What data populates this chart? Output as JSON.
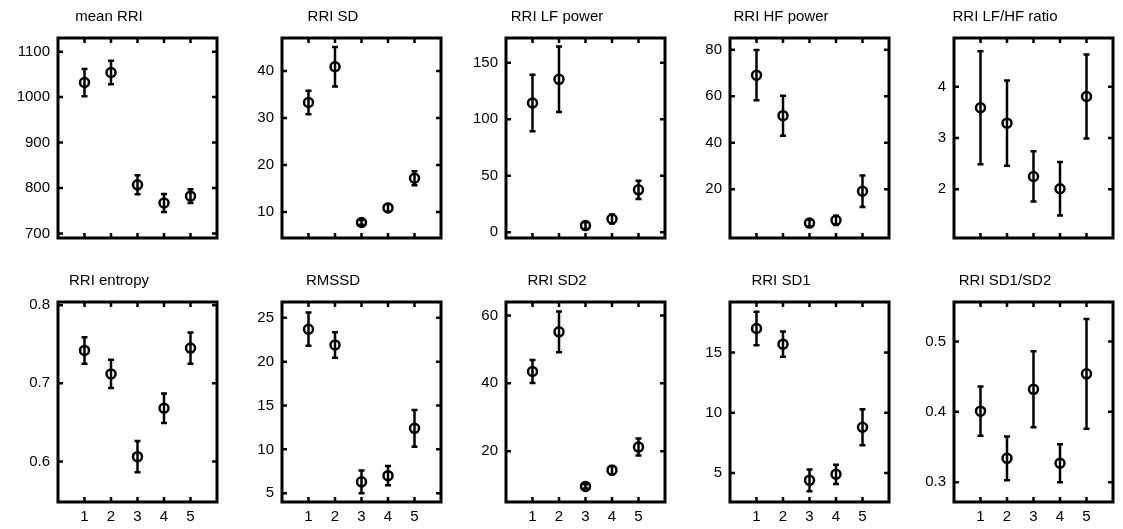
{
  "chart_data": [
    {
      "type": "scatter",
      "title": "mean RRI",
      "x": [
        1,
        2,
        3,
        4,
        5
      ],
      "xlim": [
        0,
        6
      ],
      "xticks": [
        1,
        2,
        3,
        4,
        5
      ],
      "ylim": [
        690,
        1130
      ],
      "yticks": [
        700,
        800,
        900,
        1000,
        1100
      ],
      "marker": "circle",
      "tick_labels": "y",
      "series": [
        {
          "color": "#000000",
          "values": [
            1032,
            1054,
            807,
            767,
            782
          ],
          "errors": [
            30,
            26,
            21,
            20,
            15
          ]
        }
      ]
    },
    {
      "type": "scatter",
      "title": "RRI SD",
      "x": [
        1,
        2,
        3,
        4,
        5
      ],
      "xlim": [
        0,
        6
      ],
      "xticks": [
        1,
        2,
        3,
        4,
        5
      ],
      "ylim": [
        4.5,
        47
      ],
      "yticks": [
        10,
        20,
        30,
        40
      ],
      "marker": "circle",
      "tick_labels": "y",
      "series": [
        {
          "color": "#000000",
          "values": [
            33.3,
            40.9,
            7.8,
            10.9,
            17.2
          ],
          "errors": [
            2.5,
            4.2,
            0.5,
            0.8,
            1.5
          ]
        }
      ]
    },
    {
      "type": "scatter",
      "title": "RRI LF power",
      "x": [
        1,
        2,
        3,
        4,
        5
      ],
      "xlim": [
        0,
        6
      ],
      "xticks": [
        1,
        2,
        3,
        4,
        5
      ],
      "ylim": [
        -5,
        172
      ],
      "yticks": [
        0,
        50,
        100,
        150
      ],
      "marker": "circle",
      "tick_labels": "y",
      "series": [
        {
          "color": "#000000",
          "values": [
            114.5,
            135.4,
            6,
            11.8,
            37.6
          ],
          "errors": [
            25,
            29,
            3,
            4,
            8
          ]
        }
      ]
    },
    {
      "type": "scatter",
      "title": "RRI HF power",
      "x": [
        1,
        2,
        3,
        4,
        5
      ],
      "xlim": [
        0,
        6
      ],
      "xticks": [
        1,
        2,
        3,
        4,
        5
      ],
      "ylim": [
        -1,
        85
      ],
      "yticks": [
        20,
        40,
        60,
        80
      ],
      "marker": "circle",
      "tick_labels": "y",
      "series": [
        {
          "color": "#000000",
          "values": [
            69,
            51.6,
            5.4,
            6.6,
            19.1
          ],
          "errors": [
            10.8,
            8.6,
            1.5,
            2,
            6.8
          ]
        }
      ]
    },
    {
      "type": "scatter",
      "title": "RRI LF/HF ratio",
      "x": [
        1,
        2,
        3,
        4,
        5
      ],
      "xlim": [
        0,
        6
      ],
      "xticks": [
        1,
        2,
        3,
        4,
        5
      ],
      "ylim": [
        1.05,
        4.95
      ],
      "yticks": [
        2,
        3,
        4
      ],
      "marker": "circle",
      "tick_labels": "y",
      "series": [
        {
          "color": "#000000",
          "values": [
            3.59,
            3.29,
            2.25,
            2.01,
            3.81
          ],
          "errors": [
            1.1,
            0.83,
            0.49,
            0.52,
            0.82
          ]
        }
      ]
    },
    {
      "type": "scatter",
      "title": "RRI entropy",
      "x": [
        1,
        2,
        3,
        4,
        5
      ],
      "xlim": [
        0,
        6
      ],
      "xticks": [
        1,
        2,
        3,
        4,
        5
      ],
      "ylim": [
        0.548,
        0.804
      ],
      "yticks": [
        0.6,
        0.7,
        0.8
      ],
      "marker": "circle",
      "series": [
        {
          "color": "#000000",
          "values": [
            0.742,
            0.712,
            0.606,
            0.668,
            0.745
          ],
          "errors": [
            0.017,
            0.018,
            0.02,
            0.019,
            0.02
          ]
        }
      ]
    },
    {
      "type": "scatter",
      "title": "RMSSD",
      "x": [
        1,
        2,
        3,
        4,
        5
      ],
      "xlim": [
        0,
        6
      ],
      "xticks": [
        1,
        2,
        3,
        4,
        5
      ],
      "ylim": [
        4,
        26.8
      ],
      "yticks": [
        5,
        10,
        15,
        20,
        25
      ],
      "marker": "circle",
      "series": [
        {
          "color": "#000000",
          "values": [
            23.7,
            21.9,
            6.3,
            7.0,
            12.4
          ],
          "errors": [
            1.9,
            1.45,
            1.3,
            1.1,
            2.1
          ]
        }
      ]
    },
    {
      "type": "scatter",
      "title": "RRI SD2",
      "x": [
        1,
        2,
        3,
        4,
        5
      ],
      "xlim": [
        0,
        6
      ],
      "xticks": [
        1,
        2,
        3,
        4,
        5
      ],
      "ylim": [
        5,
        64
      ],
      "yticks": [
        20,
        40,
        60
      ],
      "marker": "circle",
      "series": [
        {
          "color": "#000000",
          "values": [
            43.5,
            55.2,
            9.6,
            14.4,
            21.2
          ],
          "errors": [
            3.4,
            6,
            0.6,
            1.2,
            2.5
          ]
        }
      ]
    },
    {
      "type": "scatter",
      "title": "RRI SD1",
      "x": [
        1,
        2,
        3,
        4,
        5
      ],
      "xlim": [
        0,
        6
      ],
      "xticks": [
        1,
        2,
        3,
        4,
        5
      ],
      "ylim": [
        2.6,
        19.2
      ],
      "yticks": [
        5,
        10,
        15
      ],
      "marker": "circle",
      "series": [
        {
          "color": "#000000",
          "values": [
            17.0,
            15.7,
            4.4,
            4.9,
            8.8
          ],
          "errors": [
            1.4,
            1.05,
            0.9,
            0.8,
            1.5
          ]
        }
      ]
    },
    {
      "type": "scatter",
      "title": "RRI SD1/SD2",
      "x": [
        1,
        2,
        3,
        4,
        5
      ],
      "xlim": [
        0,
        6
      ],
      "xticks": [
        1,
        2,
        3,
        4,
        5
      ],
      "ylim": [
        0.272,
        0.556
      ],
      "yticks": [
        0.3,
        0.4,
        0.5
      ],
      "marker": "circle",
      "series": [
        {
          "color": "#000000",
          "values": [
            0.401,
            0.334,
            0.432,
            0.327,
            0.454
          ],
          "errors": [
            0.035,
            0.031,
            0.054,
            0.027,
            0.078
          ]
        }
      ]
    }
  ]
}
